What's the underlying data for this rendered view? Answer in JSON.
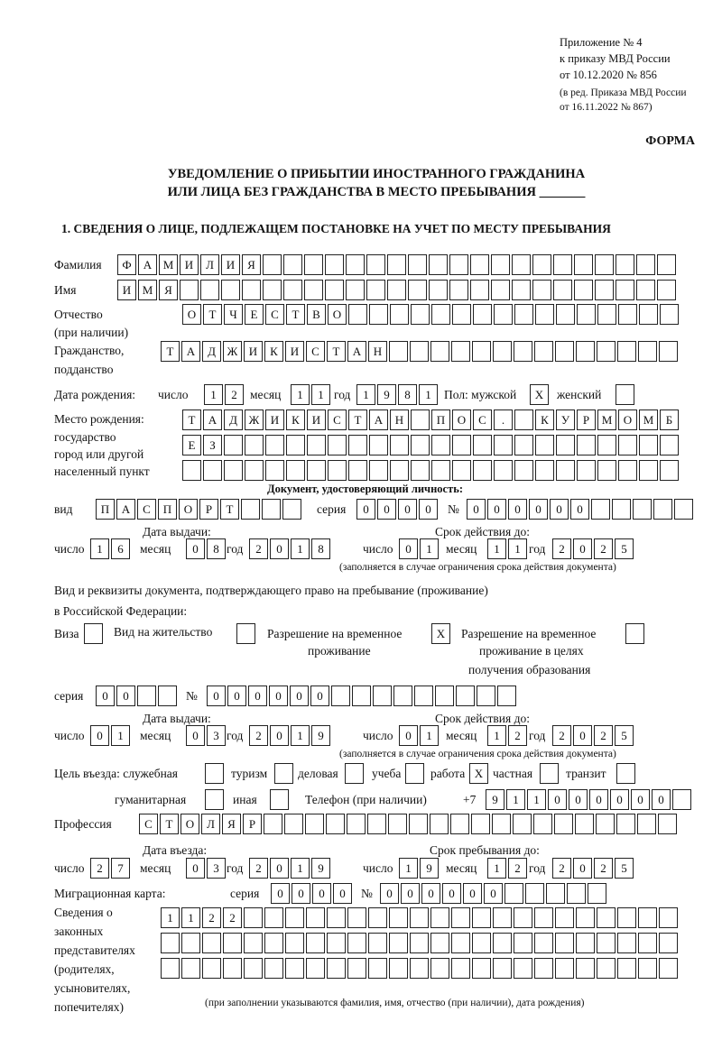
{
  "header": {
    "appendix": "Приложение № 4",
    "order": "к приказу МВД России",
    "order_date": "от 10.12.2020 № 856",
    "revision1": "(в ред. Приказа МВД России",
    "revision2": "от 16.11.2022 № 867)",
    "form_label": "ФОРМА",
    "title1": "УВЕДОМЛЕНИЕ О ПРИБЫТИИ ИНОСТРАННОГО ГРАЖДАНИНА",
    "title2": "ИЛИ ЛИЦА БЕЗ ГРАЖДАНСТВА В МЕСТО ПРЕБЫВАНИЯ _______",
    "section1": "1. СВЕДЕНИЯ О ЛИЦЕ, ПОДЛЕЖАЩЕМ ПОСТАНОВКЕ НА УЧЕТ ПО МЕСТУ ПРЕБЫВАНИЯ"
  },
  "labels": {
    "surname": "Фамилия",
    "name": "Имя",
    "patronymic1": "Отчество",
    "patronymic2": "(при наличии)",
    "citizenship1": "Гражданство,",
    "citizenship2": "подданство",
    "birth_date": "Дата рождения:",
    "day": "число",
    "month": "месяц",
    "year": "год",
    "sex": "Пол: мужской",
    "female": "женский",
    "birthplace1": "Место рождения:",
    "birthplace2": "государство",
    "birthplace3": "город или другой",
    "birthplace4": "населенный пункт",
    "id_doc": "Документ, удостоверяющий личность:",
    "kind": "вид",
    "series": "серия",
    "number": "№",
    "issue_date": "Дата выдачи:",
    "valid_until": "Срок действия до:",
    "valid_note": "(заполняется в случае ограничения срока действия документа)",
    "right_doc1": "Вид и реквизиты документа, подтверждающего право на пребывание (проживание)",
    "right_doc2": "в Российской Федерации:",
    "visa": "Виза",
    "residence": "Вид на жительство",
    "temp1": "Разрешение на временное",
    "temp2": "проживание",
    "edu1": "Разрешение на временное",
    "edu2": "проживание в целях",
    "edu3": "получения образования",
    "purpose": "Цель въезда: служебная",
    "tourism": "туризм",
    "business": "деловая",
    "study": "учеба",
    "work": "работа",
    "private": "частная",
    "transit": "транзит",
    "humanitarian": "гуманитарная",
    "other": "иная",
    "phone": "Телефон (при наличии)",
    "phone_prefix": "+7",
    "profession": "Профессия",
    "entry_date": "Дата въезда:",
    "stay_until": "Срок пребывания до:",
    "migration_card": "Миграционная карта:",
    "reps1": "Сведения о",
    "reps2": "законных",
    "reps3": "представителях",
    "reps4": "(родителях,",
    "reps5": "усыновителях,",
    "reps6": "попечителях)",
    "reps_note": "(при заполнении указываются фамилия, имя, отчество (при наличии), дата рождения)"
  },
  "person": {
    "surname": "ФАМИЛИЯ",
    "name": "ИМЯ",
    "patronymic": "ОТЧЕСТВО",
    "citizenship": "ТАДЖИКИСТАН",
    "birth_day": "12",
    "birth_month": "11",
    "birth_year": "1981",
    "male": "X",
    "female": "",
    "birthplace1": "ТАДЖИКИСТАН ПОС. КУРМОМБ",
    "birthplace2": "ЕЗ",
    "birthplace3": ""
  },
  "id_document": {
    "kind": "ПАСПОРТ",
    "series": "0000",
    "number": "000000",
    "issue_day": "16",
    "issue_month": "08",
    "issue_year": "2018",
    "valid_day": "01",
    "valid_month": "11",
    "valid_year": "2025"
  },
  "right_document": {
    "visa": "",
    "residence": "",
    "temp": "X",
    "edu": "",
    "series": "00",
    "number": "000000",
    "issue_day": "01",
    "issue_month": "03",
    "issue_year": "2019",
    "valid_day": "01",
    "valid_month": "12",
    "valid_year": "2025"
  },
  "purpose": {
    "official": "",
    "tourism": "",
    "business": "",
    "study": "",
    "work": "X",
    "private": "",
    "transit": "",
    "humanitarian": "",
    "other": ""
  },
  "phone": "911000000",
  "profession": "СТОЛЯР",
  "entry": {
    "day": "27",
    "month": "03",
    "year": "2019",
    "stay_day": "19",
    "stay_month": "12",
    "stay_year": "2025"
  },
  "migration_card": {
    "series": "0000",
    "number": "000000"
  },
  "representatives": {
    "line1": "1122",
    "line2": "",
    "line3": ""
  }
}
